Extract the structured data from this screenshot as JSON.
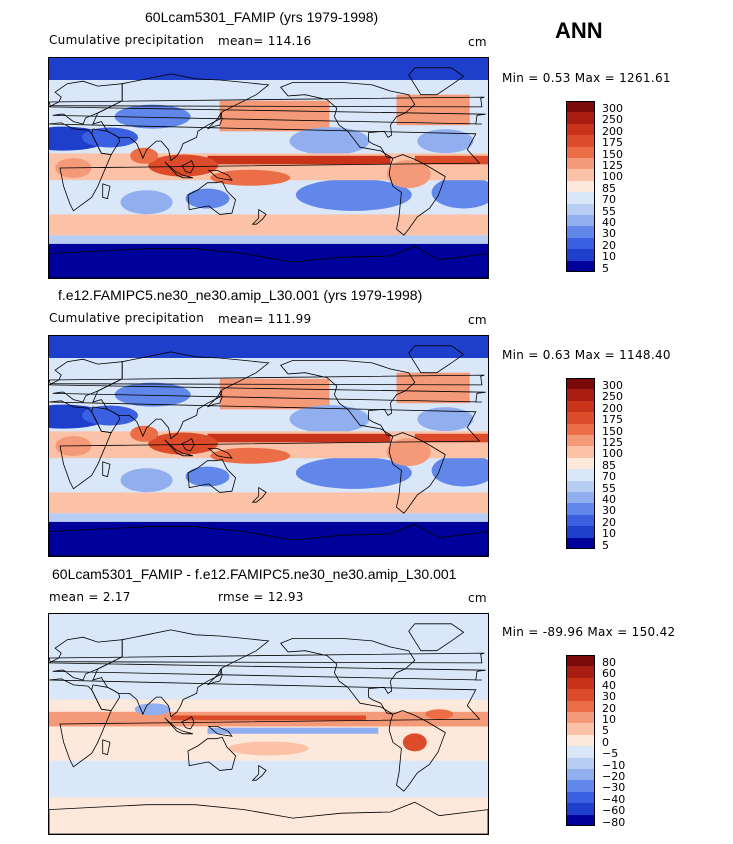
{
  "season": "ANN",
  "panels": [
    {
      "title": "60Lcam5301_FAMIP (yrs 1979-1998)",
      "left_text": "Cumulative precipitation",
      "mean_text": "mean=  114.16",
      "units": "cm",
      "minmax": "Min =    0.53 Max = 1261.61",
      "palette": "full",
      "legend": [
        "300",
        "250",
        "200",
        "175",
        "150",
        "125",
        "100",
        "85",
        "70",
        "55",
        "40",
        "30",
        "20",
        "10",
        "5"
      ]
    },
    {
      "title": "f.e12.FAMIPC5.ne30_ne30.amip_L30.001 (yrs 1979-1998)",
      "left_text": "Cumulative precipitation",
      "mean_text": "mean=  111.99",
      "units": "cm",
      "minmax": "Min =    0.63 Max = 1148.40",
      "palette": "full",
      "legend": [
        "300",
        "250",
        "200",
        "175",
        "150",
        "125",
        "100",
        "85",
        "70",
        "55",
        "40",
        "30",
        "20",
        "10",
        "5"
      ]
    },
    {
      "title": "60Lcam5301_FAMIP - f.e12.FAMIPC5.ne30_ne30.amip_L30.001",
      "left_text": "mean =    2.17",
      "mean_text": "rmse =   12.93",
      "units": "cm",
      "minmax": "Min =  -89.96 Max =  150.42",
      "palette": "diff",
      "legend": [
        "80",
        "60",
        "40",
        "30",
        "20",
        "10",
        "5",
        "0",
        "−5",
        "−10",
        "−20",
        "−30",
        "−40",
        "−60",
        "−80"
      ]
    }
  ],
  "colors": {
    "scale": [
      "#7a0a0a",
      "#a81c12",
      "#c8331a",
      "#dc4c2a",
      "#ec6e46",
      "#f59a78",
      "#fbc2a7",
      "#fde9dc",
      "#d9e7f8",
      "#b7cdf2",
      "#91aeee",
      "#6287ea",
      "#3a5fe0",
      "#1d3fcc",
      "#00009a"
    ]
  }
}
